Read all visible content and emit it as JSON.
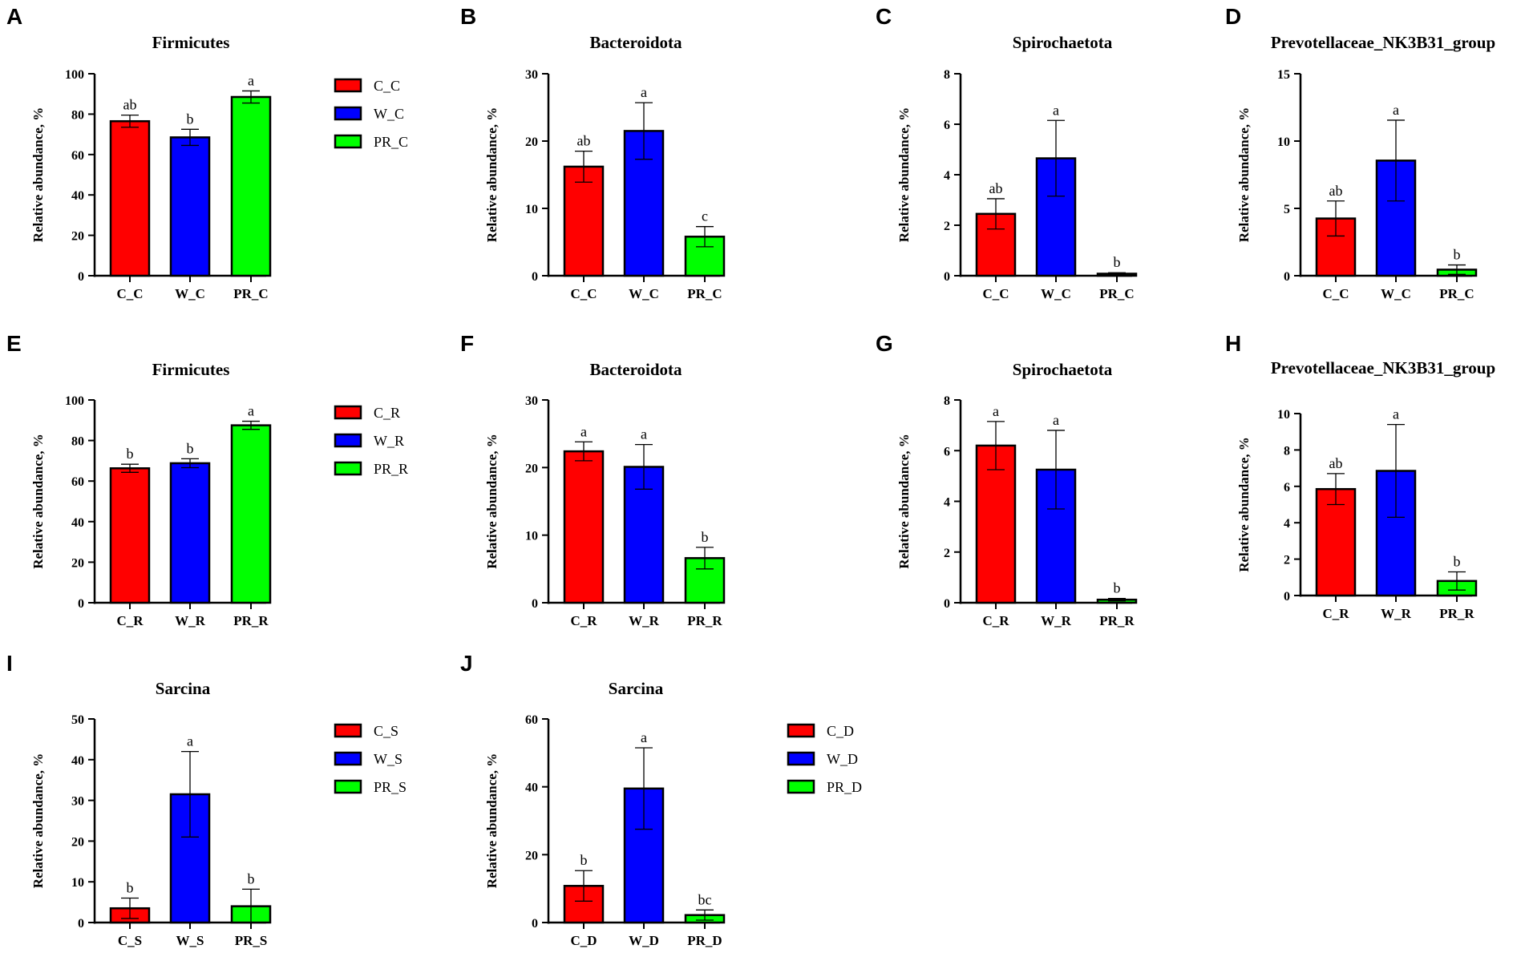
{
  "chart_data": [
    {
      "type": "bar",
      "panel": "A",
      "title": "Firmicutes",
      "ylabel": "Relative abundance, %",
      "ylim": [
        0,
        100
      ],
      "yticks": [
        0,
        20,
        40,
        60,
        80,
        100
      ],
      "categories": [
        "C_C",
        "W_C",
        "PR_C"
      ],
      "values": [
        76.5,
        68.5,
        88.5
      ],
      "errors": [
        3,
        4,
        3
      ],
      "letters": [
        "ab",
        "b",
        "a"
      ],
      "colors": [
        "#ff0000",
        "#0000ff",
        "#00ff00"
      ],
      "legend": [
        "C_C",
        "W_C",
        "PR_C"
      ]
    },
    {
      "type": "bar",
      "panel": "B",
      "title": "Bacteroidota",
      "ylabel": "Relative abundance, %",
      "ylim": [
        0,
        30
      ],
      "yticks": [
        0,
        10,
        20,
        30
      ],
      "categories": [
        "C_C",
        "W_C",
        "PR_C"
      ],
      "values": [
        16.2,
        21.5,
        5.8
      ],
      "errors": [
        2.3,
        4.2,
        1.5
      ],
      "letters": [
        "ab",
        "a",
        "c"
      ],
      "colors": [
        "#ff0000",
        "#0000ff",
        "#00ff00"
      ]
    },
    {
      "type": "bar",
      "panel": "C",
      "title": "Spirochaetota",
      "ylabel": "Relative abundance, %",
      "ylim": [
        0,
        8
      ],
      "yticks": [
        0,
        2,
        4,
        6,
        8
      ],
      "categories": [
        "C_C",
        "W_C",
        "PR_C"
      ],
      "values": [
        2.45,
        4.65,
        0.08
      ],
      "errors": [
        0.6,
        1.5,
        0.04
      ],
      "letters": [
        "ab",
        "a",
        "b"
      ],
      "colors": [
        "#ff0000",
        "#0000ff",
        "#00ff00"
      ]
    },
    {
      "type": "bar",
      "panel": "D",
      "title": "Prevotellaceae_NK3B31_group",
      "ylabel": "Relative abundance, %",
      "ylim": [
        0,
        15
      ],
      "yticks": [
        0,
        5,
        10,
        15
      ],
      "categories": [
        "C_C",
        "W_C",
        "PR_C"
      ],
      "values": [
        4.25,
        8.55,
        0.45
      ],
      "errors": [
        1.3,
        3.0,
        0.35
      ],
      "letters": [
        "ab",
        "a",
        "b"
      ],
      "colors": [
        "#ff0000",
        "#0000ff",
        "#00ff00"
      ]
    },
    {
      "type": "bar",
      "panel": "E",
      "title": "Firmicutes",
      "ylabel": "Relative abundance, %",
      "ylim": [
        0,
        100
      ],
      "yticks": [
        0,
        20,
        40,
        60,
        80,
        100
      ],
      "categories": [
        "C_R",
        "W_R",
        "PR_R"
      ],
      "values": [
        66.3,
        68.8,
        87.5
      ],
      "errors": [
        2,
        2.2,
        2
      ],
      "letters": [
        "b",
        "b",
        "a"
      ],
      "colors": [
        "#ff0000",
        "#0000ff",
        "#00ff00"
      ],
      "legend": [
        "C_R",
        "W_R",
        "PR_R"
      ]
    },
    {
      "type": "bar",
      "panel": "F",
      "title": "Bacteroidota",
      "ylabel": "Relative abundance, %",
      "ylim": [
        0,
        30
      ],
      "yticks": [
        0,
        10,
        20,
        30
      ],
      "categories": [
        "C_R",
        "W_R",
        "PR_R"
      ],
      "values": [
        22.4,
        20.1,
        6.6
      ],
      "errors": [
        1.4,
        3.3,
        1.6
      ],
      "letters": [
        "a",
        "a",
        "b"
      ],
      "colors": [
        "#ff0000",
        "#0000ff",
        "#00ff00"
      ]
    },
    {
      "type": "bar",
      "panel": "G",
      "title": "Spirochaetota",
      "ylabel": "Relative abundance, %",
      "ylim": [
        0,
        8
      ],
      "yticks": [
        0,
        2,
        4,
        6,
        8
      ],
      "categories": [
        "C_R",
        "W_R",
        "PR_R"
      ],
      "values": [
        6.2,
        5.25,
        0.12
      ],
      "errors": [
        0.95,
        1.55,
        0.05
      ],
      "letters": [
        "a",
        "a",
        "b"
      ],
      "colors": [
        "#ff0000",
        "#0000ff",
        "#00ff00"
      ]
    },
    {
      "type": "bar",
      "panel": "H",
      "title": "Prevotellaceae_NK3B31_group",
      "ylabel": "Relative abundance, %",
      "ylim": [
        0,
        10
      ],
      "yticks": [
        0,
        2,
        4,
        6,
        8,
        10
      ],
      "categories": [
        "C_R",
        "W_R",
        "PR_R"
      ],
      "values": [
        5.85,
        6.85,
        0.8
      ],
      "errors": [
        0.85,
        2.55,
        0.5
      ],
      "letters": [
        "ab",
        "a",
        "b"
      ],
      "colors": [
        "#ff0000",
        "#0000ff",
        "#00ff00"
      ]
    },
    {
      "type": "bar",
      "panel": "I",
      "title": "Sarcina",
      "ylabel": "Relative abundance, %",
      "ylim": [
        0,
        50
      ],
      "yticks": [
        0,
        10,
        20,
        30,
        40,
        50
      ],
      "categories": [
        "C_S",
        "W_S",
        "PR_S"
      ],
      "values": [
        3.5,
        31.5,
        4.0
      ],
      "errors": [
        2.5,
        10.5,
        4.2
      ],
      "letters": [
        "b",
        "a",
        "b"
      ],
      "colors": [
        "#ff0000",
        "#0000ff",
        "#00ff00"
      ],
      "legend": [
        "C_S",
        "W_S",
        "PR_S"
      ]
    },
    {
      "type": "bar",
      "panel": "J",
      "title": "Sarcina",
      "ylabel": "Relative abundance, %",
      "ylim": [
        0,
        60
      ],
      "yticks": [
        0,
        20,
        40,
        60
      ],
      "categories": [
        "C_D",
        "W_D",
        "PR_D"
      ],
      "values": [
        10.8,
        39.5,
        2.2
      ],
      "errors": [
        4.5,
        12,
        1.5
      ],
      "letters": [
        "b",
        "a",
        "bc"
      ],
      "colors": [
        "#ff0000",
        "#0000ff",
        "#00ff00"
      ],
      "legend": [
        "C_D",
        "W_D",
        "PR_D"
      ]
    }
  ]
}
